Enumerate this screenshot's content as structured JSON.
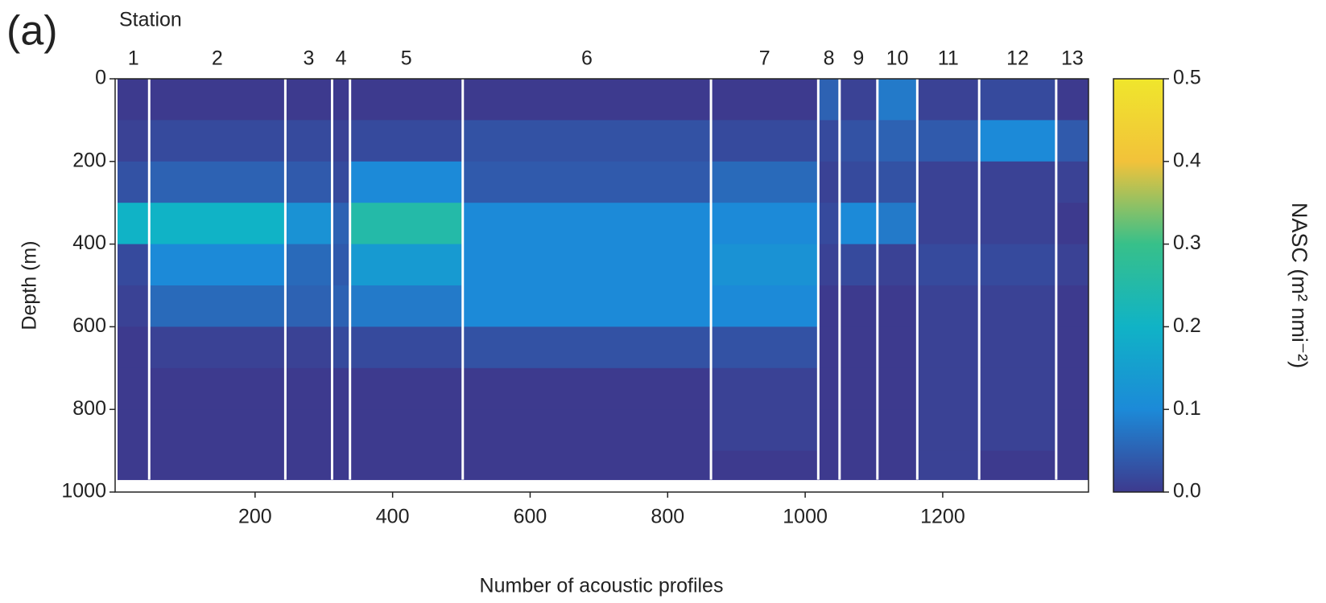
{
  "chart_data": {
    "type": "heatmap",
    "panel_label": "(a)",
    "station_title": "Station",
    "stations": [
      "1",
      "2",
      "3",
      "4",
      "5",
      "6",
      "7",
      "8",
      "9",
      "10",
      "11",
      "12",
      "13"
    ],
    "x_label": "Number of acoustic profiles",
    "y_label": "Depth (m)",
    "colorbar_label": "NASC (m² nmi⁻²)",
    "x_edges": [
      0,
      46,
      244,
      312,
      338,
      502,
      863,
      1019,
      1050,
      1105,
      1163,
      1253,
      1365,
      1412
    ],
    "y_edges": [
      0,
      100,
      200,
      300,
      400,
      500,
      600,
      700,
      800,
      900,
      970
    ],
    "z": [
      [
        0,
        0,
        0,
        0,
        0,
        0,
        0,
        0.05,
        0.01,
        0.08,
        0.01,
        0.02,
        0
      ],
      [
        0.01,
        0.02,
        0.02,
        0.01,
        0.02,
        0.03,
        0.02,
        0.02,
        0.03,
        0.05,
        0.04,
        0.1,
        0.04
      ],
      [
        0.03,
        0.05,
        0.04,
        0.02,
        0.1,
        0.04,
        0.06,
        0.01,
        0.02,
        0.03,
        0.01,
        0.01,
        0.01
      ],
      [
        0.2,
        0.2,
        0.12,
        0.05,
        0.25,
        0.1,
        0.1,
        0.02,
        0.1,
        0.08,
        0.01,
        0.01,
        0
      ],
      [
        0.02,
        0.1,
        0.06,
        0.04,
        0.14,
        0.1,
        0.12,
        0.01,
        0.02,
        0.01,
        0.02,
        0.02,
        0.01
      ],
      [
        0.01,
        0.06,
        0.05,
        0.05,
        0.08,
        0.1,
        0.1,
        0,
        0,
        0,
        0.01,
        0.01,
        0
      ],
      [
        0,
        0.01,
        0.01,
        0.02,
        0.02,
        0.03,
        0.03,
        0,
        0,
        0,
        0.01,
        0.01,
        0
      ],
      [
        0,
        0,
        0,
        0,
        0,
        0,
        0.01,
        0,
        0,
        0,
        0.01,
        0.01,
        0
      ],
      [
        0,
        0,
        0,
        0,
        0,
        0,
        0.01,
        0,
        0,
        0,
        0.01,
        0.01,
        0
      ],
      [
        0,
        0,
        0,
        0,
        0,
        0,
        0,
        0,
        0,
        0,
        0.01,
        0,
        0
      ]
    ],
    "xlim": [
      0,
      1412
    ],
    "xticks": [
      200,
      400,
      600,
      800,
      1000,
      1200
    ],
    "ylim": [
      0,
      1000
    ],
    "y_inverted": true,
    "yticks": [
      0,
      200,
      400,
      600,
      800,
      1000
    ],
    "zlim": [
      0,
      0.5
    ],
    "zticks": [
      {
        "value": 0,
        "label": "0.0"
      },
      0.1,
      0.2,
      0.3,
      0.4,
      0.5
    ],
    "colormap": [
      "#3d3a8e",
      "#1c8ad8",
      "#10b3c6",
      "#37c08a",
      "#f2c23a",
      "#f0e62c"
    ],
    "separator_color": "#ffffff"
  }
}
